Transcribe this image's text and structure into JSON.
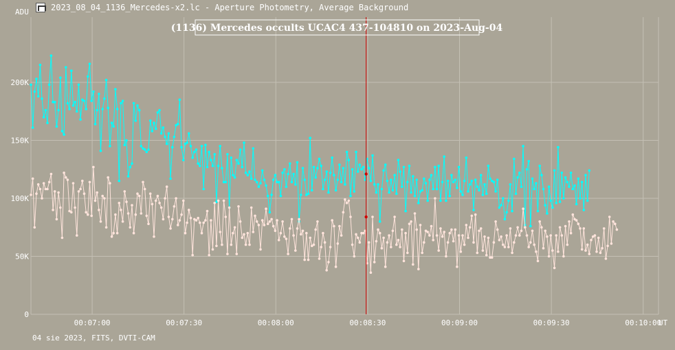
{
  "window": {
    "title": "2023_08_04_1136_Mercedes-x2.lc - Aperture Photometry, Average Background",
    "icon": "lightcurve-app-icon"
  },
  "footer": {
    "text": "04 sie 2023, FITS, DVTI-CAM"
  },
  "colors": {
    "background": "#aaa597",
    "grid": "#c4c0b4",
    "target": "#00ffff",
    "comparison": "#ffe4dc",
    "marker": "#d00000"
  },
  "chart_data": {
    "type": "line",
    "title": "(1136) Mercedes occults UCAC4 437-104810 on 2023-Aug-04",
    "ylabel": "ADU",
    "xlabel": "UT",
    "xlim_seconds": [
      400,
      605
    ],
    "ylim": [
      0,
      200000
    ],
    "x_ticks": [
      {
        "s": 420,
        "label": "00:07:00"
      },
      {
        "s": 450,
        "label": "00:07:30"
      },
      {
        "s": 480,
        "label": "00:08:00"
      },
      {
        "s": 510,
        "label": "00:08:30"
      },
      {
        "s": 540,
        "label": "00:09:00"
      },
      {
        "s": 570,
        "label": "00:09:30"
      },
      {
        "s": 600,
        "label": "00:10:00"
      }
    ],
    "y_ticks": [
      {
        "v": 0,
        "label": "0"
      },
      {
        "v": 50000,
        "label": "50K"
      },
      {
        "v": 100000,
        "label": "100K"
      },
      {
        "v": 150000,
        "label": "150K"
      },
      {
        "v": 200000,
        "label": "200K"
      }
    ],
    "grid": true,
    "marker_time_s": 509.5,
    "series": [
      {
        "key": "target",
        "x_start": 400,
        "x_step": 0.6,
        "values": [
          198000,
          161000,
          192000,
          203000,
          188000,
          215000,
          186000,
          170000,
          176000,
          165000,
          198000,
          223000,
          183000,
          183000,
          162000,
          176000,
          204000,
          158000,
          155000,
          213000,
          182000,
          177000,
          210000,
          180000,
          183000,
          175000,
          198000,
          168000,
          185000,
          184000,
          177000,
          205000,
          216000,
          184000,
          192000,
          164000,
          176000,
          190000,
          141000,
          177000,
          186000,
          202000,
          178000,
          145000,
          165000,
          162000,
          194000,
          177000,
          115000,
          182000,
          184000,
          146000,
          150000,
          119000,
          127000,
          130000,
          182000,
          167000,
          180000,
          176000,
          145000,
          143000,
          142000,
          140000,
          142000,
          167000,
          158000,
          165000,
          160000,
          174000,
          176000,
          156000,
          161000,
          153000,
          147000,
          156000,
          117000,
          144000,
          153000,
          163000,
          164000,
          185000,
          144000,
          133000,
          147000,
          148000,
          156000,
          145000,
          135000,
          140000,
          142000,
          130000,
          128000,
          145000,
          108000,
          146000,
          127000,
          140000,
          133000,
          128000,
          138000,
          97000,
          128000,
          145000,
          126000,
          114000,
          114000,
          138000,
          92000,
          135000,
          120000,
          118000,
          133000,
          130000,
          142000,
          127000,
          148000,
          122000,
          120000,
          123000,
          117000,
          143000,
          116000,
          114000,
          110000,
          113000,
          124000,
          116000,
          111000,
          102000,
          88000,
          103000,
          116000,
          120000,
          114000,
          114000,
          102000,
          122000,
          125000,
          110000,
          121000,
          130000,
          114000,
          121000,
          112000,
          131000,
          80000,
          103000,
          126000,
          116000,
          103000,
          104000,
          152000,
          107000,
          127000,
          118000,
          126000,
          134000,
          128000,
          108000,
          116000,
          123000,
          105000,
          122000,
          135000,
          120000,
          107000,
          116000,
          129000,
          114000,
          126000,
          112000,
          140000,
          133000,
          102000,
          125000,
          106000,
          140000,
          123000,
          129000,
          125000,
          127000,
          116000,
          134000,
          126000,
          115000,
          137000,
          112000,
          105000,
          112000,
          80000,
          108000,
          124000,
          129000,
          115000,
          105000,
          116000,
          107000,
          120000,
          104000,
          133000,
          123000,
          110000,
          127000,
          89000,
          114000,
          128000,
          105000,
          119000,
          102000,
          116000,
          96000,
          106000,
          107000,
          117000,
          113000,
          98000,
          116000,
          120000,
          108000,
          127000,
          108000,
          128000,
          98000,
          114000,
          136000,
          98000,
          115000,
          102000,
          120000,
          114000,
          116000,
          109000,
          127000,
          106000,
          103000,
          115000,
          135000,
          106000,
          112000,
          115000,
          90000,
          116000,
          110000,
          107000,
          120000,
          103000,
          112000,
          104000,
          128000,
          117000,
          115000,
          114000,
          106000,
          116000,
          92000,
          94000,
          100000,
          82000,
          88000,
          98000,
          112000,
          89000,
          134000,
          104000,
          118000,
          122000,
          110000,
          145000,
          77000,
          125000,
          132000,
          76000,
          117000,
          108000,
          113000,
          89000,
          128000,
          120000,
          108000,
          94000,
          87000,
          110000,
          98000,
          92000,
          124000,
          96000,
          144000,
          97000,
          122000,
          100000,
          118000,
          114000,
          110000,
          122000,
          108000,
          111000,
          95000,
          117000,
          100000,
          114000,
          90000,
          120000,
          98000,
          124000
        ]
      },
      {
        "key": "comparison",
        "x_start": 400,
        "x_step": 0.6,
        "values": [
          103000,
          117000,
          75000,
          104000,
          112000,
          108000,
          100000,
          113000,
          108000,
          108000,
          114000,
          121000,
          90000,
          106000,
          82000,
          105000,
          92000,
          66000,
          122000,
          118000,
          116000,
          89000,
          88000,
          113000,
          92000,
          68000,
          106000,
          108000,
          115000,
          104000,
          88000,
          86000,
          114000,
          85000,
          127000,
          98000,
          105000,
          90000,
          80000,
          102000,
          100000,
          75000,
          118000,
          113000,
          67000,
          70000,
          86000,
          70000,
          96000,
          90000,
          80000,
          106000,
          97000,
          87000,
          75000,
          94000,
          70000,
          86000,
          104000,
          102000,
          87000,
          114000,
          108000,
          85000,
          78000,
          104000,
          95000,
          67000,
          98000,
          102000,
          96000,
          92000,
          82000,
          100000,
          110000,
          84000,
          74000,
          82000,
          93000,
          100000,
          77000,
          81000,
          86000,
          98000,
          70000,
          79000,
          90000,
          83000,
          51000,
          82000,
          81000,
          83000,
          79000,
          70000,
          79000,
          81000,
          89000,
          51000,
          81000,
          56000,
          96000,
          59000,
          98000,
          71000,
          60000,
          98000,
          84000,
          52000,
          92000,
          60000,
          70000,
          75000,
          52000,
          93000,
          80000,
          66000,
          69000,
          60000,
          70000,
          60000,
          92000,
          71000,
          85000,
          80000,
          77000,
          56000,
          81000,
          77000,
          91000,
          78000,
          80000,
          82000,
          76000,
          72000,
          81000,
          64000,
          70000,
          80000,
          67000,
          65000,
          52000,
          74000,
          82000,
          68000,
          55000,
          74000,
          82000,
          69000,
          72000,
          47000,
          70000,
          47000,
          66000,
          59000,
          60000,
          73000,
          80000,
          48000,
          58000,
          70000,
          62000,
          38000,
          45000,
          58000,
          81000,
          76000,
          41000,
          61000,
          76000,
          68000,
          88000,
          99000,
          96000,
          98000,
          84000,
          60000,
          50000,
          69000,
          66000,
          62000,
          70000,
          70000,
          72000,
          44000,
          62000,
          36000,
          84000,
          45000,
          63000,
          73000,
          70000,
          57000,
          66000,
          41000,
          62000,
          68000,
          58000,
          72000,
          84000,
          60000,
          64000,
          58000,
          73000,
          46000,
          70000,
          53000,
          78000,
          80000,
          43000,
          87000,
          73000,
          39000,
          77000,
          53000,
          62000,
          72000,
          71000,
          68000,
          76000,
          64000,
          100000,
          68000,
          55000,
          74000,
          67000,
          71000,
          50000,
          62000,
          70000,
          73000,
          63000,
          73000,
          41000,
          68000,
          54000,
          68000,
          60000,
          77000,
          66000,
          75000,
          85000,
          62000,
          86000,
          53000,
          72000,
          74000,
          55000,
          67000,
          51000,
          66000,
          49000,
          49000,
          62000,
          80000,
          73000,
          64000,
          67000,
          60000,
          58000,
          68000,
          58000,
          74000,
          53000,
          62000,
          68000,
          75000,
          68000,
          72000,
          91000,
          75000,
          68000,
          58000,
          62000,
          72000,
          60000,
          54000,
          46000,
          80000,
          75000,
          57000,
          72000,
          67000,
          50000,
          68000,
          55000,
          40000,
          68000,
          54000,
          75000,
          68000,
          50000,
          76000,
          60000,
          80000,
          70000,
          86000,
          82000,
          81000,
          78000,
          74000,
          56000,
          74000,
          55000,
          60000,
          52000,
          64000,
          67000,
          68000,
          54000,
          66000,
          53000,
          57000,
          74000,
          48000,
          59000,
          84000,
          61000,
          80000,
          78000,
          73000
        ]
      }
    ],
    "marker_points": [
      {
        "series": "target",
        "value": 121000
      },
      {
        "series": "comparison",
        "value": 84000
      }
    ]
  }
}
